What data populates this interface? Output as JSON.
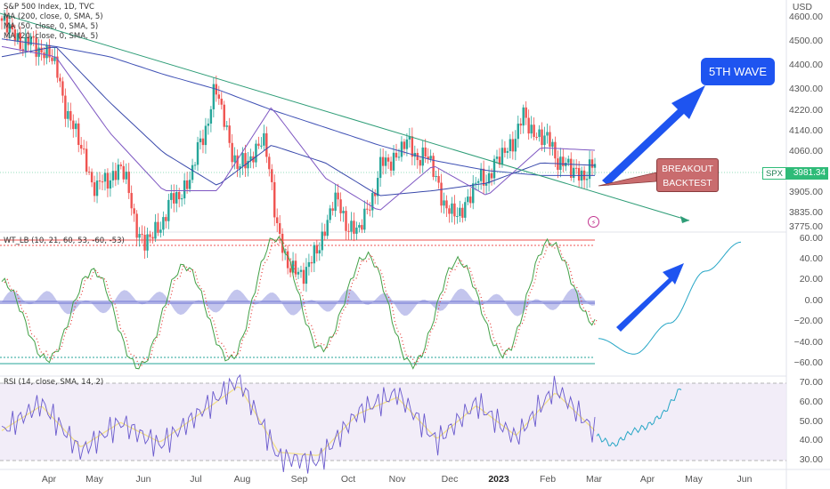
{
  "legend": {
    "title": "S&P 500 Index, 1D, TVC",
    "ma_lines": [
      "MA (200, close, 0, SMA, 5)",
      "MA (50, close, 0, SMA, 5)",
      "MA (20, close, 0, SMA, 5)"
    ]
  },
  "wt_label": "WT_LB (10, 21, 60, 53, -60, -53)",
  "rsi_label": "RSI (14, close, SMA, 14, 2)",
  "currency": "USD",
  "annotations": {
    "wave": "5TH WAVE",
    "breakout_line1": "BREAKOUT",
    "breakout_line2": "BACKTEST"
  },
  "symbol_tag": "SPX",
  "last_price": "3981.34",
  "price_axis": [
    "4600.00",
    "4500.00",
    "4400.00",
    "4300.00",
    "4220.00",
    "4140.00",
    "4060.00",
    "3905.00",
    "3835.00",
    "3775.00"
  ],
  "wt_axis": [
    "60.00",
    "40.00",
    "20.00",
    "0.00",
    "−20.00",
    "−40.00",
    "−60.00"
  ],
  "rsi_axis": [
    "70.00",
    "60.00",
    "50.00",
    "40.00",
    "30.00"
  ],
  "time_axis": [
    "Apr",
    "May",
    "Jun",
    "Jul",
    "Aug",
    "Sep",
    "Oct",
    "Nov",
    "Dec",
    "2023",
    "Feb",
    "Mar",
    "Apr",
    "May",
    "Jun"
  ],
  "colors": {
    "up": "#26a69a",
    "down": "#ef5350",
    "ma200": "#3f51b5",
    "ma50": "#3949ab",
    "ma20": "#7e57c2",
    "trend": "#2e9d77",
    "arrow": "#1e54f0"
  },
  "chart_data": [
    {
      "type": "candlestick",
      "title": "S&P 500 Index, 1D, TVC",
      "ylim": [
        3740,
        4640
      ],
      "x": [
        "Apr",
        "May",
        "Jun",
        "Jul",
        "Aug",
        "Sep",
        "Oct",
        "Nov",
        "Dec",
        "2023",
        "Feb",
        "Mar"
      ],
      "close_path": [
        [
          "Mar 28",
          4560
        ],
        [
          "Apr 5",
          4480
        ],
        [
          "Apr 20",
          4450
        ],
        [
          "May 1",
          4150
        ],
        [
          "May 20",
          3900
        ],
        [
          "Jun 10",
          4000
        ],
        [
          "Jun 17",
          3670
        ],
        [
          "Jul 1",
          3825
        ],
        [
          "Jul 20",
          3960
        ],
        [
          "Aug 16",
          4300
        ],
        [
          "Sep 1",
          3970
        ],
        [
          "Sep 12",
          4110
        ],
        [
          "Sep 30",
          3585
        ],
        [
          "Oct 13",
          3590
        ],
        [
          "Oct 25",
          3860
        ],
        [
          "Nov 3",
          3720
        ],
        [
          "Nov 15",
          3990
        ],
        [
          "Dec 1",
          4080
        ],
        [
          "Dec 13",
          4020
        ],
        [
          "Dec 28",
          3780
        ],
        [
          "Jan 10",
          3920
        ],
        [
          "Jan 25",
          4020
        ],
        [
          "Feb 2",
          4180
        ],
        [
          "Feb 16",
          4090
        ],
        [
          "Feb 28",
          3970
        ],
        [
          "Mar 2",
          3981
        ]
      ],
      "series": [
        {
          "name": "MA (200, close, 0, SMA, 5)",
          "values": [
            4500,
            4470,
            4430,
            4360,
            4300,
            4220,
            4150,
            4080,
            4020,
            3980,
            3960,
            3960
          ]
        },
        {
          "name": "MA (50, close, 0, SMA, 5)",
          "values": [
            4430,
            4470,
            4250,
            4050,
            3920,
            4080,
            4010,
            3880,
            3900,
            3930,
            4010,
            4000
          ]
        },
        {
          "name": "MA (20, close, 0, SMA, 5)",
          "values": [
            4470,
            4430,
            4130,
            3900,
            3900,
            4230,
            3950,
            3820,
            4000,
            3880,
            4070,
            4060
          ]
        }
      ],
      "last_price": 3981.34
    },
    {
      "type": "line",
      "title": "WT_LB (10, 21, 60, 53, -60, -53)",
      "ylim": [
        -66,
        66
      ],
      "levels": [
        60,
        53,
        -53,
        -60
      ],
      "series": [
        {
          "name": "wt1",
          "values": [
            20,
            -55,
            30,
            -62,
            35,
            -55,
            62,
            -45,
            45,
            -60,
            40,
            -50,
            58,
            -20
          ]
        },
        {
          "name": "projection",
          "values": [
            -35,
            -50,
            -20,
            30,
            58
          ]
        }
      ]
    },
    {
      "type": "line",
      "title": "RSI (14, close, SMA, 14, 2)",
      "ylim": [
        25,
        75
      ],
      "levels": [
        70,
        30
      ],
      "series": [
        {
          "name": "RSI",
          "values": [
            45,
            60,
            35,
            50,
            38,
            55,
            72,
            32,
            30,
            55,
            65,
            40,
            60,
            42,
            68,
            45
          ]
        },
        {
          "name": "projection",
          "values": [
            43,
            38,
            45,
            48,
            55,
            68
          ]
        }
      ]
    }
  ]
}
